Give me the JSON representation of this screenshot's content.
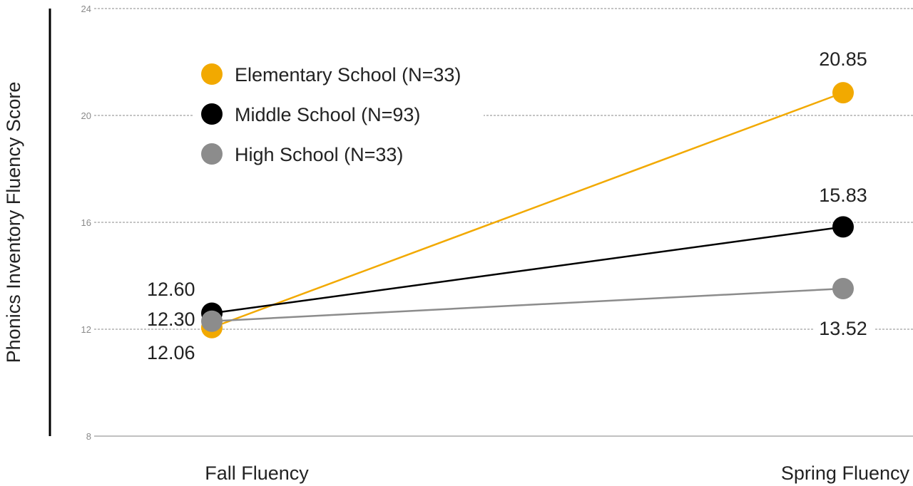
{
  "chart_data": {
    "type": "line",
    "categories": [
      "Fall Fluency",
      "Spring Fluency"
    ],
    "ylabel": "Phonics Inventory Fluency Score",
    "ylim": [
      8,
      24
    ],
    "yticks": [
      8,
      12,
      16,
      20,
      24
    ],
    "grid": true,
    "legend_position": "top-left",
    "series": [
      {
        "name": "Elementary School (N=33)",
        "color": "#F2A900",
        "values": [
          12.06,
          20.85
        ],
        "labels": [
          "12.06",
          "20.85"
        ]
      },
      {
        "name": "Middle School (N=93)",
        "color": "#000000",
        "values": [
          12.6,
          15.83
        ],
        "labels": [
          "12.60",
          "15.83"
        ]
      },
      {
        "name": "High School (N=33)",
        "color": "#8C8C8C",
        "values": [
          12.3,
          13.52
        ],
        "labels": [
          "12.30",
          "13.52"
        ]
      }
    ]
  }
}
